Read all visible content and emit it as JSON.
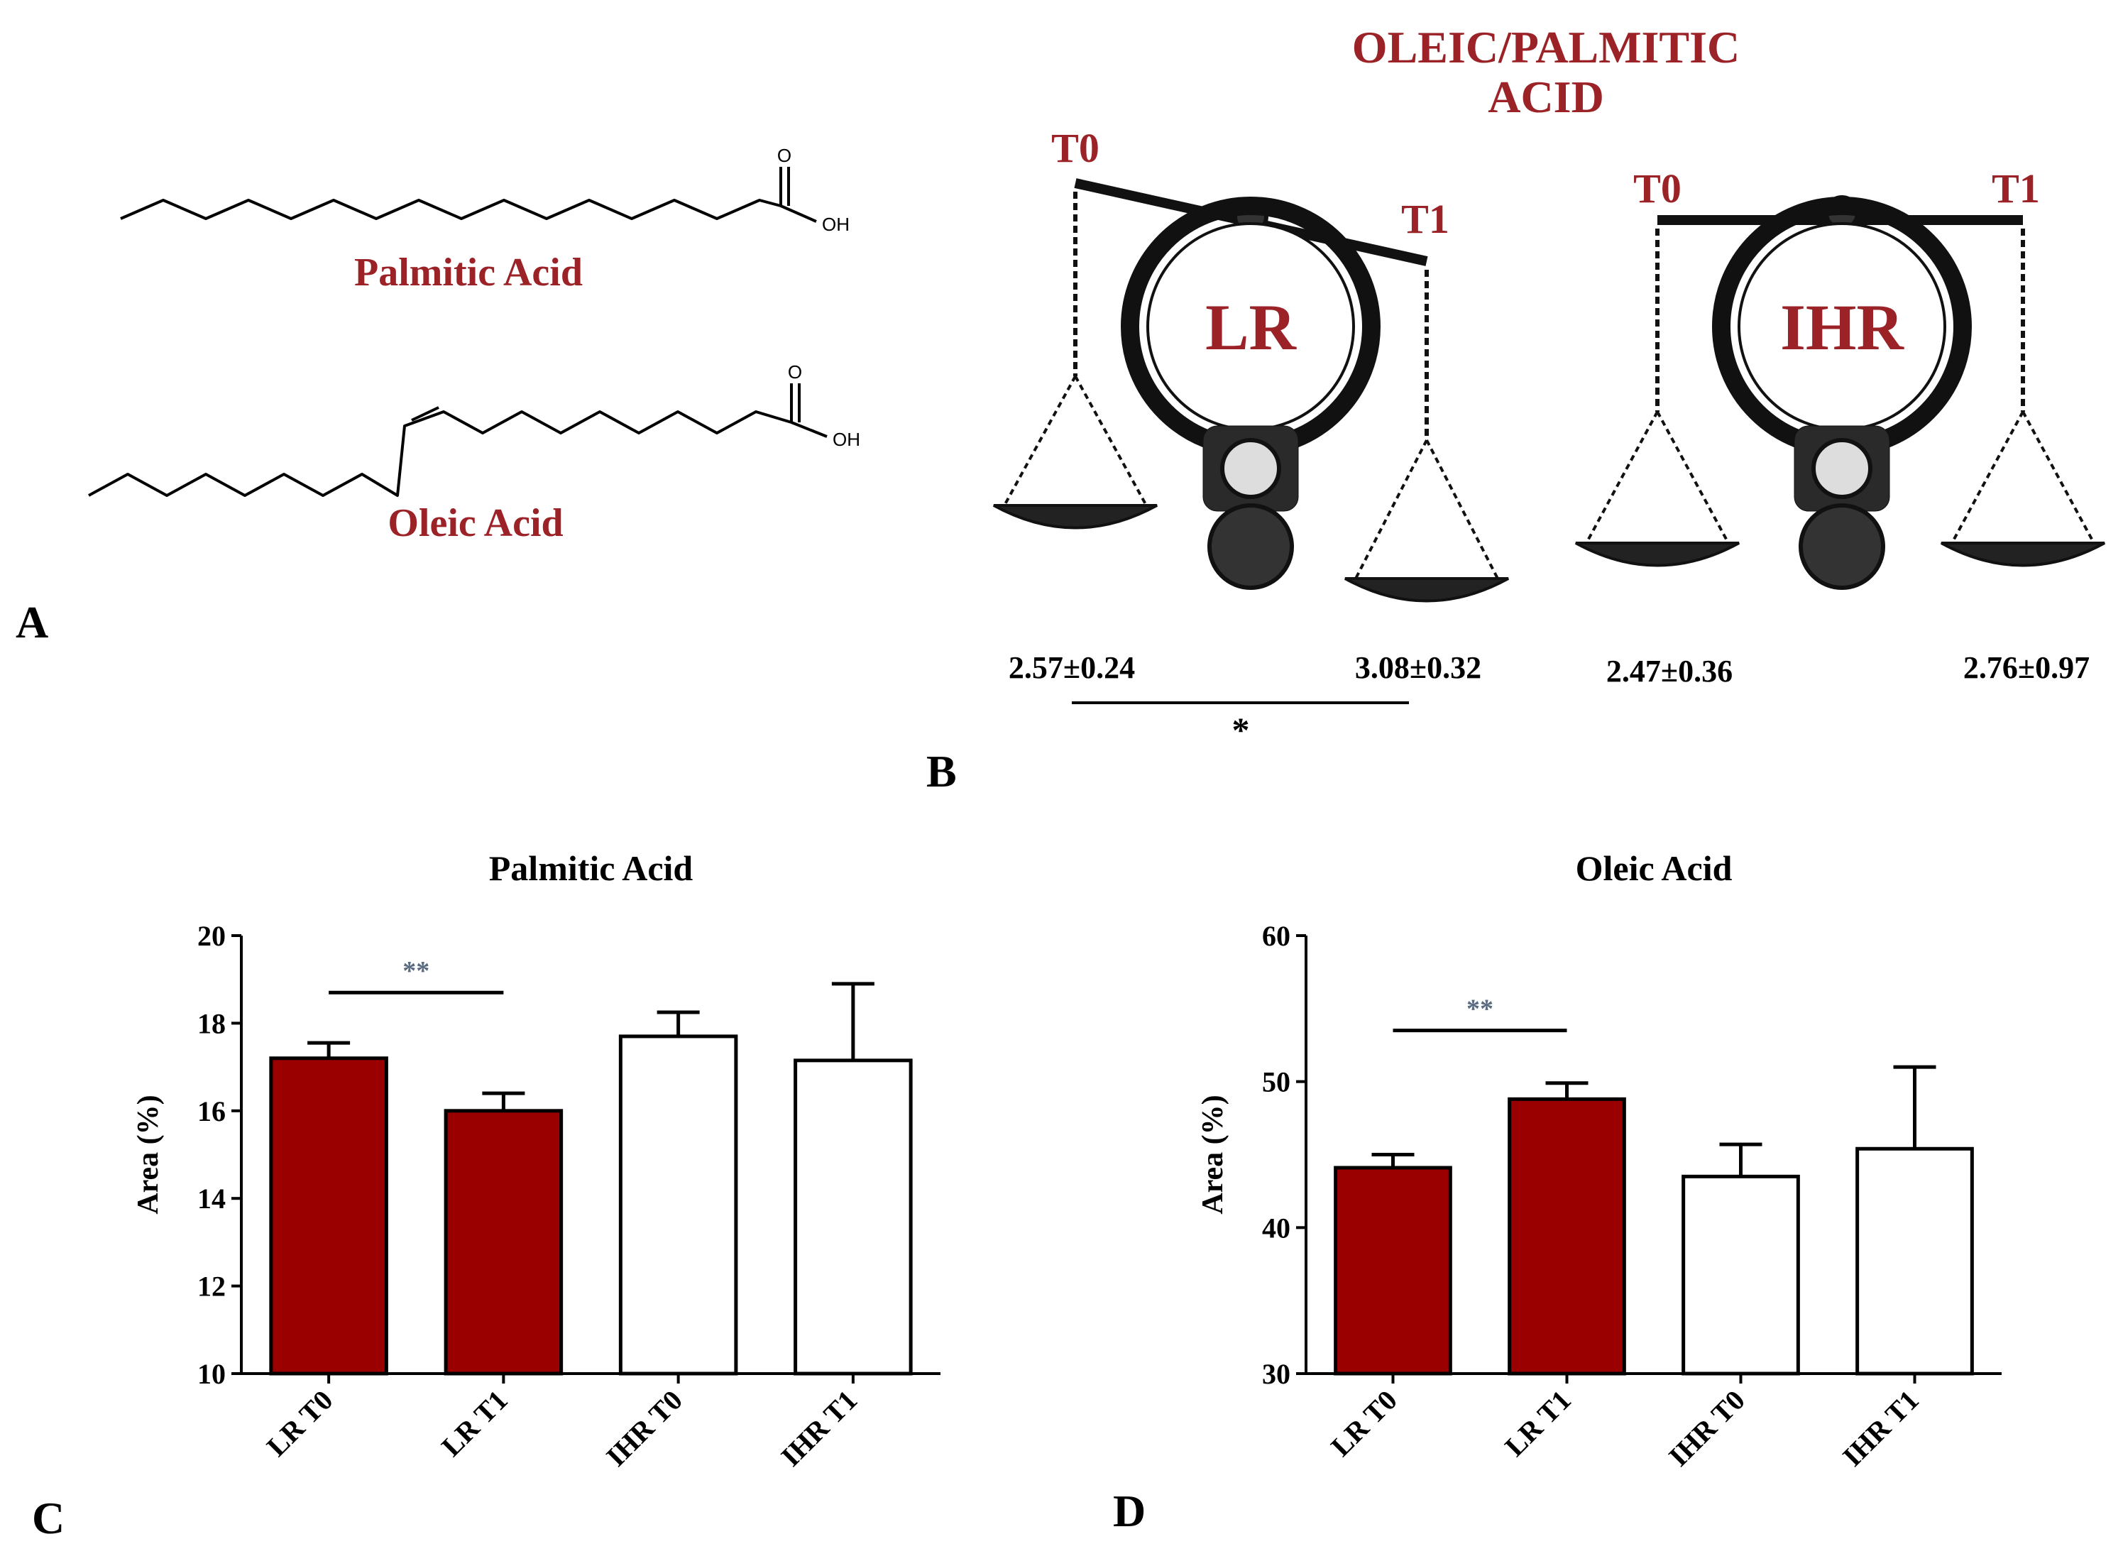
{
  "panel_labels": {
    "a": "A",
    "b": "B",
    "c": "C",
    "d": "D"
  },
  "structures": {
    "palmitic": {
      "name": "Palmitic Acid",
      "carbonyl_o": "O",
      "hydroxyl": "OH"
    },
    "oleic": {
      "name": "Oleic Acid",
      "carbonyl_o": "O",
      "hydroxyl": "OH"
    }
  },
  "ratio_panel": {
    "title_line1": "OLEIC/PALMITIC",
    "title_line2": "ACID",
    "lr": {
      "name": "LR",
      "t0_label": "T0",
      "t1_label": "T1",
      "t0_value": "2.57±0.24",
      "t1_value": "3.08±0.32",
      "significance": "*"
    },
    "ihr": {
      "name": "IHR",
      "t0_label": "T0",
      "t1_label": "T1",
      "t0_value": "2.47±0.36",
      "t1_value": "2.76±0.97"
    }
  },
  "colors": {
    "lr_fill": "#9b0000",
    "ihr_fill": "#ffffff",
    "accent_text": "#9b2226",
    "sig_text": "#5a6a80"
  },
  "chart_data": [
    {
      "type": "bar",
      "title": "Palmitic Acid",
      "xlabel": "",
      "ylabel": "Area (%)",
      "ylim": [
        10,
        20
      ],
      "yticks": [
        10,
        12,
        14,
        16,
        18,
        20
      ],
      "categories": [
        "LR T0",
        "LR T1",
        "IHR T0",
        "IHR T1"
      ],
      "values": [
        17.2,
        16.0,
        17.7,
        17.15
      ],
      "errors": [
        0.35,
        0.4,
        0.55,
        1.75
      ],
      "fills": [
        "#9b0000",
        "#9b0000",
        "#ffffff",
        "#ffffff"
      ],
      "significance": {
        "from": 0,
        "to": 1,
        "label": "**",
        "y": 18.7
      }
    },
    {
      "type": "bar",
      "title": "Oleic Acid",
      "xlabel": "",
      "ylabel": "Area (%)",
      "ylim": [
        30,
        60
      ],
      "yticks": [
        30,
        40,
        50,
        60
      ],
      "categories": [
        "LR T0",
        "LR T1",
        "IHR T0",
        "IHR T1"
      ],
      "values": [
        44.1,
        48.8,
        43.5,
        45.4
      ],
      "errors": [
        0.9,
        1.1,
        2.2,
        5.6
      ],
      "fills": [
        "#9b0000",
        "#9b0000",
        "#ffffff",
        "#ffffff"
      ],
      "significance": {
        "from": 0,
        "to": 1,
        "label": "**",
        "y": 53.5
      }
    }
  ]
}
